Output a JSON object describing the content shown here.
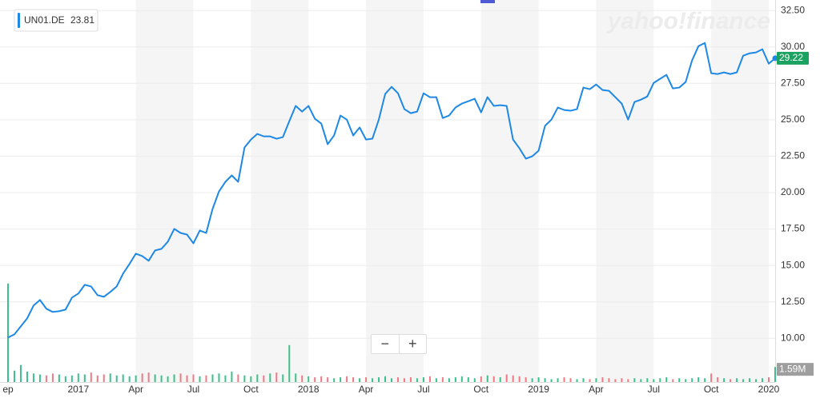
{
  "watermark": "yahoo!finance",
  "controls": [
    "−",
    "+"
  ],
  "chart_data": {
    "type": "line",
    "categories": [
      "ep",
      null,
      null,
      null,
      null,
      null,
      null,
      null,
      null,
      null,
      null,
      "2017",
      null,
      null,
      null,
      null,
      null,
      null,
      null,
      null,
      "Apr",
      null,
      null,
      null,
      null,
      null,
      null,
      null,
      null,
      "Jul",
      null,
      null,
      null,
      null,
      null,
      null,
      null,
      null,
      "Oct",
      null,
      null,
      null,
      null,
      null,
      null,
      null,
      null,
      "2018",
      null,
      null,
      null,
      null,
      null,
      null,
      null,
      null,
      "Apr",
      null,
      null,
      null,
      null,
      null,
      null,
      null,
      null,
      "Jul",
      null,
      null,
      null,
      null,
      null,
      null,
      null,
      null,
      "Oct",
      null,
      null,
      null,
      null,
      null,
      null,
      null,
      null,
      "2019",
      null,
      null,
      null,
      null,
      null,
      null,
      null,
      null,
      "Apr",
      null,
      null,
      null,
      null,
      null,
      null,
      null,
      null,
      "Jul",
      null,
      null,
      null,
      null,
      null,
      null,
      null,
      null,
      "Oct",
      null,
      null,
      null,
      null,
      null,
      null,
      null,
      null,
      "2020",
      null
    ],
    "series": [
      {
        "name": "UN01.DE",
        "color": "#1e88e5",
        "values": [
          10.05,
          10.27,
          10.82,
          11.37,
          12.25,
          12.63,
          12.03,
          11.81,
          11.86,
          11.97,
          12.79,
          13.07,
          13.67,
          13.56,
          12.96,
          12.85,
          13.18,
          13.56,
          14.44,
          15.1,
          15.81,
          15.64,
          15.32,
          16.03,
          16.14,
          16.63,
          17.51,
          17.23,
          17.12,
          16.52,
          17.4,
          17.23,
          18.88,
          20.08,
          20.74,
          21.18,
          20.74,
          23.1,
          23.64,
          24.03,
          23.86,
          23.86,
          23.7,
          23.81,
          24.9,
          25.95,
          25.56,
          25.95,
          25.07,
          24.74,
          23.32,
          23.92,
          25.29,
          25.01,
          23.92,
          24.47,
          23.64,
          23.7,
          25.01,
          26.77,
          27.26,
          26.82,
          25.73,
          25.45,
          25.56,
          26.82,
          26.55,
          26.55,
          25.12,
          25.29,
          25.84,
          26.11,
          26.27,
          26.44,
          25.51,
          26.55,
          25.95,
          26.0,
          25.95,
          23.64,
          23.04,
          22.33,
          22.49,
          22.88,
          24.58,
          25.01,
          25.84,
          25.67,
          25.62,
          25.73,
          27.21,
          27.1,
          27.42,
          27.04,
          26.99,
          26.55,
          26.11,
          25.01,
          26.22,
          26.38,
          26.6,
          27.53,
          27.81,
          28.08,
          27.15,
          27.21,
          27.59,
          29.07,
          30.05,
          30.27,
          28.19,
          28.14,
          28.25,
          28.14,
          28.25,
          29.4,
          29.56,
          29.62,
          29.84,
          28.85,
          29.22
        ]
      }
    ],
    "volume": {
      "axis": "y2",
      "up_color": "#3cc08a",
      "down_color": "#ef7a84",
      "values": [
        10.4,
        1.2,
        1.8,
        1.1,
        0.9,
        0.8,
        0.7,
        0.9,
        0.8,
        0.6,
        0.7,
        0.9,
        0.8,
        1.0,
        0.7,
        0.8,
        0.9,
        0.7,
        0.8,
        0.6,
        0.7,
        0.9,
        1.0,
        0.8,
        0.7,
        0.6,
        0.8,
        0.9,
        0.7,
        0.8,
        0.6,
        0.7,
        0.8,
        0.9,
        0.7,
        1.1,
        0.8,
        0.7,
        0.6,
        0.8,
        0.7,
        0.9,
        1.0,
        0.8,
        3.9,
        0.9,
        0.7,
        0.6,
        0.5,
        0.6,
        0.5,
        0.4,
        0.5,
        0.6,
        0.5,
        0.4,
        0.5,
        0.4,
        0.5,
        0.6,
        0.4,
        0.5,
        0.4,
        0.5,
        0.4,
        0.5,
        0.6,
        0.4,
        0.5,
        0.4,
        0.5,
        0.6,
        0.5,
        0.4,
        0.6,
        0.7,
        0.6,
        0.5,
        0.8,
        0.7,
        0.6,
        0.5,
        0.4,
        0.5,
        0.4,
        0.3,
        0.4,
        0.5,
        0.4,
        0.3,
        0.4,
        0.3,
        0.4,
        0.5,
        0.4,
        0.3,
        0.4,
        0.3,
        0.4,
        0.3,
        0.4,
        0.3,
        0.4,
        0.5,
        0.3,
        0.4,
        0.3,
        0.4,
        0.5,
        0.4,
        0.9,
        0.5,
        0.4,
        0.3,
        0.4,
        0.3,
        0.4,
        0.3,
        0.4,
        0.5,
        1.59
      ]
    },
    "ylim": [
      7,
      33
    ],
    "yticks": [
      {
        "value": 10,
        "label": "10.00"
      },
      {
        "value": 12.5,
        "label": "12.50"
      },
      {
        "value": 15,
        "label": "15.00"
      },
      {
        "value": 17.5,
        "label": "17.50"
      },
      {
        "value": 20,
        "label": "20.00"
      },
      {
        "value": 22.5,
        "label": "22.50"
      },
      {
        "value": 25,
        "label": "25.00"
      },
      {
        "value": 27.5,
        "label": "27.50"
      },
      {
        "value": 30,
        "label": "30.00"
      },
      {
        "value": 32.5,
        "label": "32.50"
      }
    ],
    "y2lim": [
      0,
      40
    ],
    "y2ticks": [
      {
        "value": 1.59,
        "label": "1.59M"
      }
    ],
    "last_color": "#1aa260",
    "grid": true
  }
}
